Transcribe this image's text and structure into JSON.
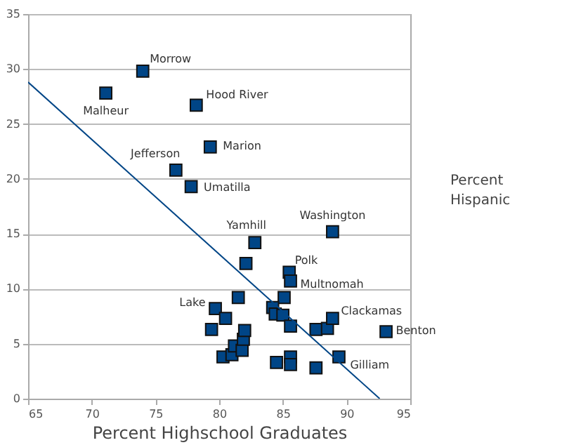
{
  "chart_data": {
    "type": "scatter",
    "xlabel": "Percent Highschool Graduates",
    "ylabel": "Percent Hispanic",
    "xlim": [
      65,
      95
    ],
    "xticks": [
      65,
      70,
      75,
      80,
      85,
      90,
      95
    ],
    "ylim": [
      0,
      35
    ],
    "yticks": [
      0,
      5,
      10,
      15,
      20,
      25,
      30,
      35
    ],
    "grid": "y",
    "marker": "square",
    "series": [
      {
        "color": "#004586",
        "x": [
          74.0,
          71.1,
          78.2,
          79.3,
          76.6,
          77.8,
          82.8,
          88.9,
          82.1,
          85.5,
          85.6,
          79.7,
          81.5,
          80.5,
          79.4,
          85.1,
          84.2,
          84.4,
          85.0,
          85.6,
          87.6,
          88.5,
          88.9,
          93.1,
          89.4,
          87.6,
          85.6,
          85.6,
          84.5,
          80.3,
          81.0,
          81.2,
          81.8,
          81.9,
          82.0
        ],
        "values": [
          29.8,
          27.8,
          26.7,
          22.9,
          20.8,
          19.3,
          14.2,
          15.2,
          12.3,
          11.5,
          10.7,
          8.2,
          9.2,
          7.3,
          6.3,
          9.2,
          8.3,
          7.7,
          7.6,
          6.6,
          6.3,
          6.4,
          7.3,
          6.1,
          3.8,
          2.8,
          3.8,
          3.1,
          3.3,
          3.8,
          4.0,
          4.8,
          4.4,
          5.4,
          6.2
        ]
      },
      {
        "type": "line",
        "marker": "none",
        "color": "#004586",
        "x": [
          65,
          92.6
        ],
        "values": [
          28.8,
          0
        ]
      }
    ],
    "annotations": [
      {
        "text": "Morrow",
        "x": 74.0,
        "y": 29.8
      },
      {
        "text": "Malheur",
        "x": 71.1,
        "y": 27.8
      },
      {
        "text": "Hood River",
        "x": 78.2,
        "y": 26.7
      },
      {
        "text": "Marion",
        "x": 79.3,
        "y": 22.9
      },
      {
        "text": "Jefferson",
        "x": 76.6,
        "y": 20.8
      },
      {
        "text": "Umatilla",
        "x": 77.8,
        "y": 19.3
      },
      {
        "text": "Yamhill",
        "x": 82.8,
        "y": 14.2
      },
      {
        "text": "Washington",
        "x": 88.9,
        "y": 15.2
      },
      {
        "text": "Polk",
        "x": 85.5,
        "y": 11.5
      },
      {
        "text": "Multnomah",
        "x": 85.6,
        "y": 10.7
      },
      {
        "text": "Lake",
        "x": 79.7,
        "y": 8.2
      },
      {
        "text": "Clackamas",
        "x": 88.9,
        "y": 7.3
      },
      {
        "text": "Benton",
        "x": 93.1,
        "y": 6.1
      },
      {
        "text": "Gilliam",
        "x": 89.4,
        "y": 3.8
      }
    ]
  }
}
